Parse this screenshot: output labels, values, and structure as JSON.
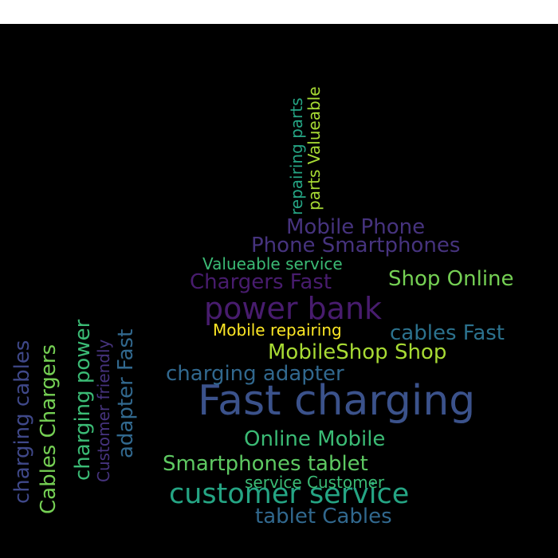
{
  "palette": {
    "background": "#000000",
    "frame": "#ffffff",
    "dark_purple": "#481c6e",
    "purple": "#46337e",
    "indigo": "#3f4889",
    "blue": "#3b528b",
    "slate_blue": "#31688e",
    "teal_blue": "#2c728e",
    "teal": "#21918c",
    "sea_green": "#25a584",
    "green": "#3bbb75",
    "light_green": "#75d054",
    "lime": "#a8db34",
    "yellow": "#fde725"
  },
  "words": [
    {
      "text": "Fast charging",
      "color": "#3b528b"
    },
    {
      "text": "power bank",
      "color": "#481c6e"
    },
    {
      "text": "customer service",
      "color": "#25a584"
    },
    {
      "text": "Mobile Phone",
      "color": "#46337e"
    },
    {
      "text": "Phone Smartphones",
      "color": "#46337e"
    },
    {
      "text": "Chargers Fast",
      "color": "#481c6e"
    },
    {
      "text": "Shop Online",
      "color": "#75d054"
    },
    {
      "text": "Valueable service",
      "color": "#3bbb75"
    },
    {
      "text": "Mobile repairing",
      "color": "#fde725"
    },
    {
      "text": "cables Fast",
      "color": "#2c728e"
    },
    {
      "text": "MobileShop Shop",
      "color": "#a8db34"
    },
    {
      "text": "charging adapter",
      "color": "#31688e"
    },
    {
      "text": "Online Mobile",
      "color": "#3bbb75"
    },
    {
      "text": "Smartphones tablet",
      "color": "#5ec962"
    },
    {
      "text": "service Customer",
      "color": "#3bbb75"
    },
    {
      "text": "tablet Cables",
      "color": "#31688e"
    },
    {
      "text": "repairing parts",
      "color": "#25a584"
    },
    {
      "text": "parts Valueable",
      "color": "#a8db34"
    },
    {
      "text": "charging cables",
      "color": "#3f4889"
    },
    {
      "text": "Cables Chargers",
      "color": "#75d054"
    },
    {
      "text": "charging power",
      "color": "#3bbb75"
    },
    {
      "text": "Customer friendly",
      "color": "#46337e"
    },
    {
      "text": "adapter Fast",
      "color": "#31688e"
    }
  ]
}
